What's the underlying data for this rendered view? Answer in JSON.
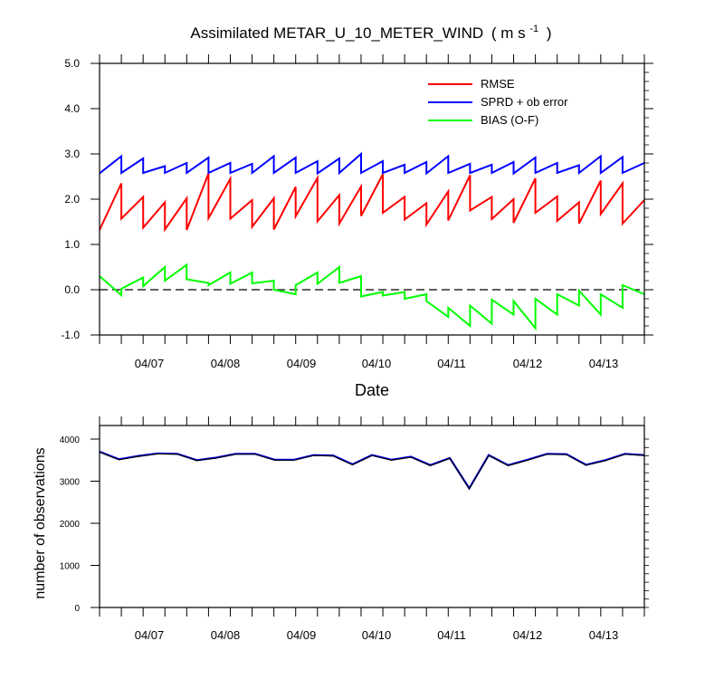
{
  "chart_data": [
    {
      "type": "line",
      "title": "Assimilated METAR_U_10_METER_WIND",
      "title_units": "( m s",
      "title_units_exp": "-1",
      "title_units_close": ")",
      "xlabel": "Date",
      "ylabel": "",
      "x_ticks": [
        "04/07",
        "04/08",
        "04/09",
        "04/10",
        "04/11",
        "04/12",
        "04/13"
      ],
      "y_ticks": [
        "-1.0",
        "0.0",
        "1.0",
        "2.0",
        "3.0",
        "4.0",
        "5.0"
      ],
      "ylim": [
        -1.0,
        5.0
      ],
      "reference_line": {
        "y": 0.0,
        "style": "dashed"
      },
      "legend_position": "top-right",
      "grid": false,
      "colors": {
        "rmse": "#ff0000",
        "sprd": "#0000ff",
        "bias": "#00ff00"
      },
      "series": [
        {
          "name": "RMSE",
          "color": "#ff0000",
          "points": [
            [
              0,
              1.32
            ],
            [
              1,
              2.35
            ],
            [
              1,
              1.57
            ],
            [
              2,
              2.05
            ],
            [
              2,
              1.37
            ],
            [
              3,
              1.93
            ],
            [
              3,
              1.33
            ],
            [
              4,
              2.02
            ],
            [
              4,
              1.32
            ],
            [
              5,
              2.57
            ],
            [
              5,
              1.58
            ],
            [
              6,
              2.45
            ],
            [
              6,
              1.57
            ],
            [
              7,
              1.98
            ],
            [
              7,
              1.39
            ],
            [
              8,
              2.02
            ],
            [
              8,
              1.33
            ],
            [
              9,
              2.27
            ],
            [
              9,
              1.62
            ],
            [
              10,
              2.47
            ],
            [
              10,
              1.51
            ],
            [
              11,
              2.09
            ],
            [
              11,
              1.46
            ],
            [
              12,
              2.28
            ],
            [
              12,
              1.63
            ],
            [
              13,
              2.55
            ],
            [
              13,
              1.7
            ],
            [
              14,
              2.05
            ],
            [
              14,
              1.55
            ],
            [
              15,
              1.91
            ],
            [
              15,
              1.44
            ],
            [
              16,
              2.17
            ],
            [
              16,
              1.53
            ],
            [
              17,
              2.53
            ],
            [
              17,
              1.75
            ],
            [
              18,
              2.05
            ],
            [
              18,
              1.56
            ],
            [
              19,
              2.0
            ],
            [
              19,
              1.48
            ],
            [
              20,
              2.46
            ],
            [
              20,
              1.7
            ],
            [
              21,
              2.06
            ],
            [
              21,
              1.52
            ],
            [
              22,
              1.93
            ],
            [
              22,
              1.46
            ],
            [
              23,
              2.41
            ],
            [
              23,
              1.67
            ],
            [
              24,
              2.35
            ],
            [
              24,
              1.46
            ],
            [
              25,
              1.98
            ]
          ]
        },
        {
          "name": "SPRD + ob error",
          "color": "#0000ff",
          "points": [
            [
              0,
              2.57
            ],
            [
              1,
              2.95
            ],
            [
              1,
              2.58
            ],
            [
              2,
              2.9
            ],
            [
              2,
              2.58
            ],
            [
              3,
              2.73
            ],
            [
              3,
              2.58
            ],
            [
              4,
              2.8
            ],
            [
              4,
              2.58
            ],
            [
              5,
              2.92
            ],
            [
              5,
              2.58
            ],
            [
              6,
              2.8
            ],
            [
              6,
              2.58
            ],
            [
              7,
              2.78
            ],
            [
              7,
              2.58
            ],
            [
              8,
              2.95
            ],
            [
              8,
              2.58
            ],
            [
              9,
              2.92
            ],
            [
              9,
              2.58
            ],
            [
              10,
              2.84
            ],
            [
              10,
              2.57
            ],
            [
              11,
              2.9
            ],
            [
              11,
              2.58
            ],
            [
              12,
              3.0
            ],
            [
              12,
              2.58
            ],
            [
              13,
              2.84
            ],
            [
              13,
              2.58
            ],
            [
              14,
              2.76
            ],
            [
              14,
              2.58
            ],
            [
              15,
              2.82
            ],
            [
              15,
              2.57
            ],
            [
              16,
              2.95
            ],
            [
              16,
              2.58
            ],
            [
              17,
              2.78
            ],
            [
              17,
              2.58
            ],
            [
              18,
              2.76
            ],
            [
              18,
              2.58
            ],
            [
              19,
              2.82
            ],
            [
              19,
              2.57
            ],
            [
              20,
              2.92
            ],
            [
              20,
              2.58
            ],
            [
              21,
              2.8
            ],
            [
              21,
              2.58
            ],
            [
              22,
              2.75
            ],
            [
              22,
              2.58
            ],
            [
              23,
              2.95
            ],
            [
              23,
              2.58
            ],
            [
              24,
              2.93
            ],
            [
              24,
              2.58
            ],
            [
              25,
              2.8
            ]
          ]
        },
        {
          "name": "BIAS (O-F)",
          "color": "#00ff00",
          "points": [
            [
              0,
              0.3
            ],
            [
              1,
              -0.12
            ],
            [
              1,
              0.02
            ],
            [
              2,
              0.27
            ],
            [
              2,
              0.08
            ],
            [
              3,
              0.5
            ],
            [
              3,
              0.2
            ],
            [
              4,
              0.55
            ],
            [
              4,
              0.23
            ],
            [
              5,
              0.15
            ],
            [
              5,
              0.1
            ],
            [
              6,
              0.38
            ],
            [
              6,
              0.13
            ],
            [
              7,
              0.38
            ],
            [
              7,
              0.14
            ],
            [
              8,
              0.2
            ],
            [
              8,
              0.0
            ],
            [
              9,
              -0.1
            ],
            [
              9,
              0.1
            ],
            [
              10,
              0.38
            ],
            [
              10,
              0.13
            ],
            [
              11,
              0.5
            ],
            [
              11,
              0.15
            ],
            [
              12,
              0.3
            ],
            [
              12,
              -0.15
            ],
            [
              13,
              -0.05
            ],
            [
              13,
              -0.13
            ],
            [
              14,
              -0.05
            ],
            [
              14,
              -0.2
            ],
            [
              15,
              -0.1
            ],
            [
              15,
              -0.25
            ],
            [
              16,
              -0.6
            ],
            [
              16,
              -0.4
            ],
            [
              17,
              -0.8
            ],
            [
              17,
              -0.35
            ],
            [
              18,
              -0.75
            ],
            [
              18,
              -0.22
            ],
            [
              19,
              -0.55
            ],
            [
              19,
              -0.25
            ],
            [
              20,
              -0.85
            ],
            [
              20,
              -0.2
            ],
            [
              21,
              -0.55
            ],
            [
              21,
              -0.1
            ],
            [
              22,
              -0.35
            ],
            [
              22,
              -0.02
            ],
            [
              23,
              -0.55
            ],
            [
              23,
              -0.1
            ],
            [
              24,
              -0.4
            ],
            [
              24,
              0.1
            ],
            [
              25,
              -0.1
            ]
          ]
        }
      ]
    },
    {
      "type": "line",
      "title": "",
      "xlabel": "",
      "ylabel": "number of observations",
      "x_ticks": [
        "04/07",
        "04/08",
        "04/09",
        "04/10",
        "04/11",
        "04/12",
        "04/13"
      ],
      "y_ticks": [
        "0",
        "1000",
        "2000",
        "3000",
        "4000"
      ],
      "ylim": [
        0,
        4000
      ],
      "grid": false,
      "colors": {
        "possible": "#0000ff",
        "used": "#000000"
      },
      "series": [
        {
          "color": "#0000ff",
          "values": [
            3700,
            3520,
            3600,
            3660,
            3650,
            3500,
            3560,
            3650,
            3650,
            3510,
            3510,
            3620,
            3610,
            3400,
            3620,
            3510,
            3580,
            3380,
            3550,
            2830,
            3620,
            3380,
            3510,
            3650,
            3640,
            3390,
            3500,
            3650,
            3620
          ]
        },
        {
          "color": "#000000",
          "values": [
            3690,
            3510,
            3590,
            3650,
            3640,
            3490,
            3550,
            3640,
            3640,
            3500,
            3500,
            3610,
            3600,
            3390,
            3610,
            3500,
            3570,
            3370,
            3540,
            2820,
            3610,
            3370,
            3500,
            3640,
            3630,
            3380,
            3490,
            3640,
            3610
          ]
        }
      ]
    }
  ]
}
